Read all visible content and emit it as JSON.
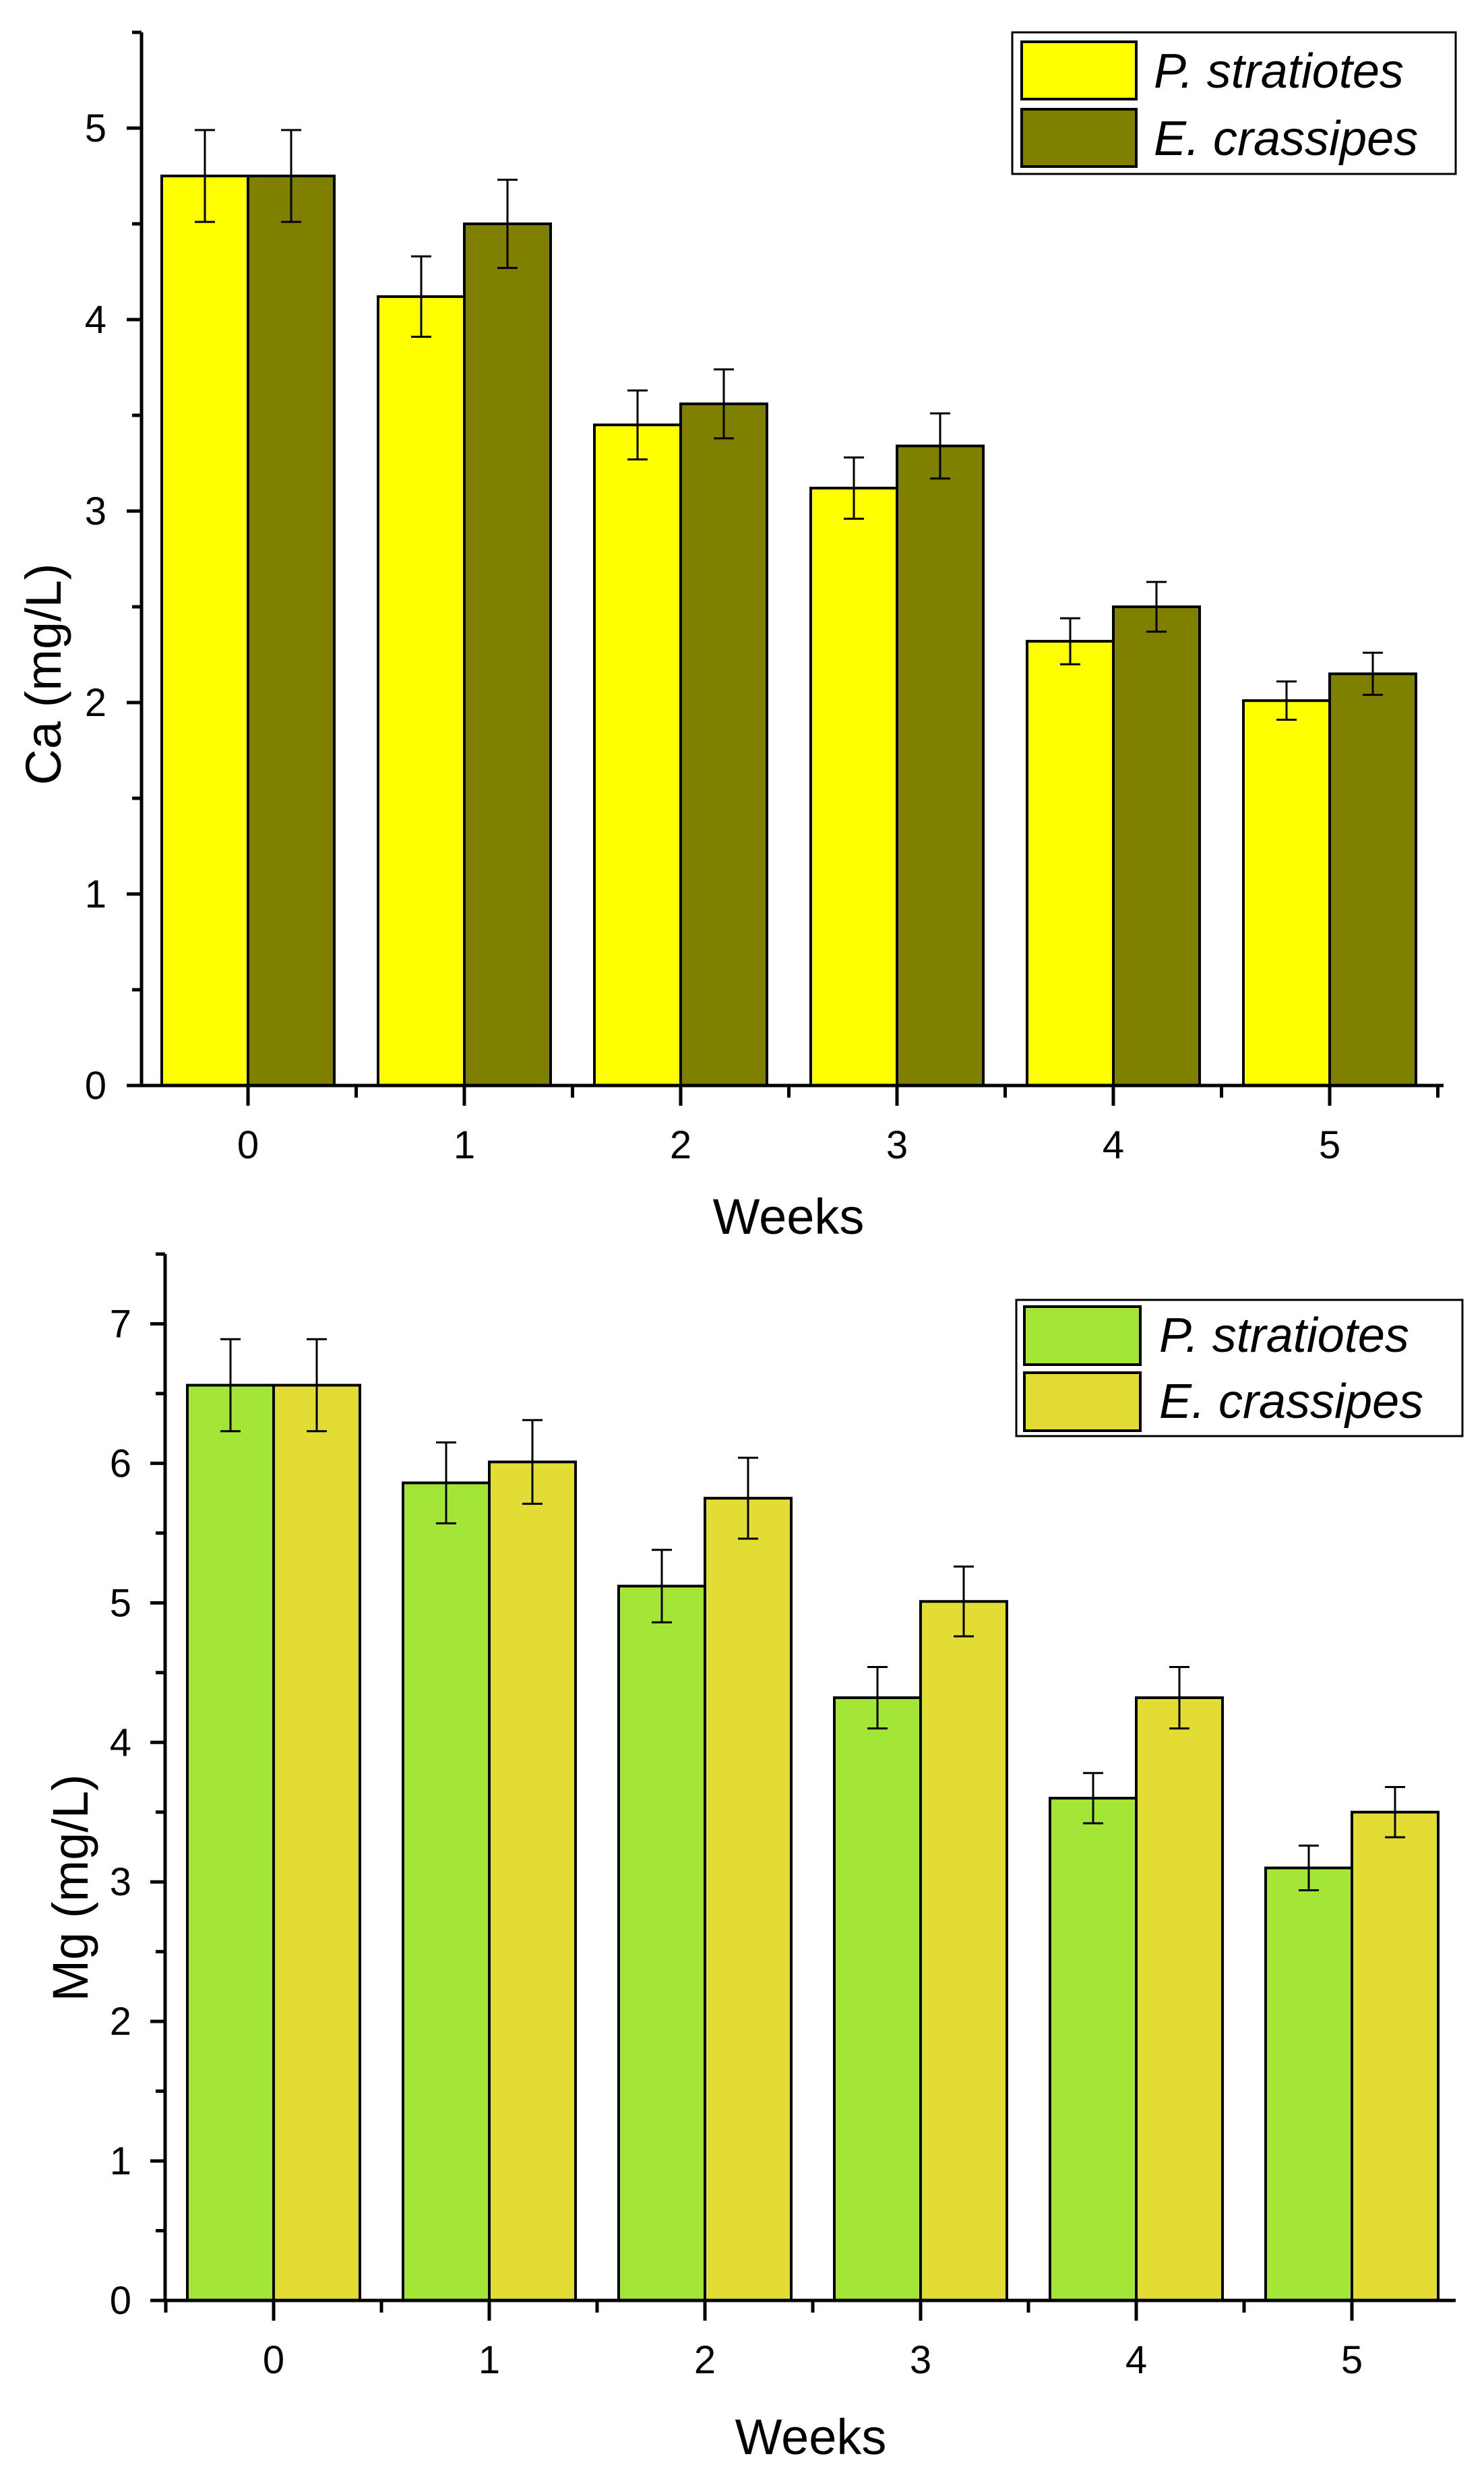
{
  "chart_data": [
    {
      "type": "bar",
      "title": "",
      "xlabel": "Weeks",
      "ylabel": "Ca (mg/L)",
      "categories": [
        "0",
        "1",
        "2",
        "3",
        "4",
        "5"
      ],
      "ylim": [
        0,
        5.5
      ],
      "yticks": [
        "0",
        "1",
        "2",
        "3",
        "4",
        "5"
      ],
      "legend_position": "top-right",
      "series": [
        {
          "name": "P. stratiotes",
          "color": "#ffff00",
          "values": [
            4.75,
            4.12,
            3.45,
            3.12,
            2.32,
            2.01
          ],
          "errors": [
            0.24,
            0.21,
            0.18,
            0.16,
            0.12,
            0.1
          ]
        },
        {
          "name": "E. crassipes",
          "color": "#808000",
          "values": [
            4.75,
            4.5,
            3.56,
            3.34,
            2.5,
            2.15
          ],
          "errors": [
            0.24,
            0.23,
            0.18,
            0.17,
            0.13,
            0.11
          ]
        }
      ]
    },
    {
      "type": "bar",
      "title": "",
      "xlabel": "Weeks",
      "ylabel": "Mg (mg/L)",
      "categories": [
        "0",
        "1",
        "2",
        "3",
        "4",
        "5"
      ],
      "ylim": [
        0,
        7.5
      ],
      "yticks": [
        "0",
        "1",
        "2",
        "3",
        "4",
        "5",
        "6",
        "7"
      ],
      "legend_position": "top-right",
      "series": [
        {
          "name": "P. stratiotes",
          "color": "#a3e635",
          "values": [
            6.56,
            5.86,
            5.12,
            4.32,
            3.6,
            3.1
          ],
          "errors": [
            0.33,
            0.29,
            0.26,
            0.22,
            0.18,
            0.16
          ]
        },
        {
          "name": "E. crassipes",
          "color": "#e3dc32",
          "values": [
            6.56,
            6.01,
            5.75,
            5.01,
            4.32,
            3.5
          ],
          "errors": [
            0.33,
            0.3,
            0.29,
            0.25,
            0.22,
            0.18
          ]
        }
      ]
    }
  ]
}
